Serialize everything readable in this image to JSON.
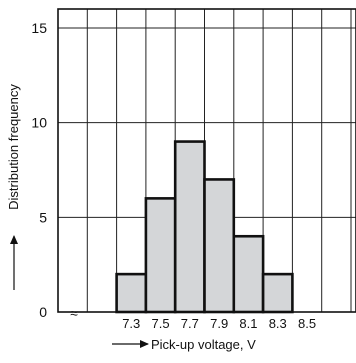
{
  "chart_data": {
    "type": "bar",
    "title": "",
    "xlabel": "Pick-up voltage, V",
    "ylabel": "Distribution frequency",
    "categories": [
      "7.3",
      "7.5",
      "7.7",
      "7.9",
      "8.1",
      "8.3",
      "8.5"
    ],
    "values": [
      2,
      6,
      9,
      7,
      4,
      2,
      0
    ],
    "ylim": [
      0,
      16
    ],
    "yticks": [
      "0",
      "5",
      "10",
      "15"
    ],
    "x_break_symbol": "≈",
    "grid": true,
    "legend": "none",
    "bar_color": "#d4d6d8",
    "edge_color": "#111111"
  }
}
